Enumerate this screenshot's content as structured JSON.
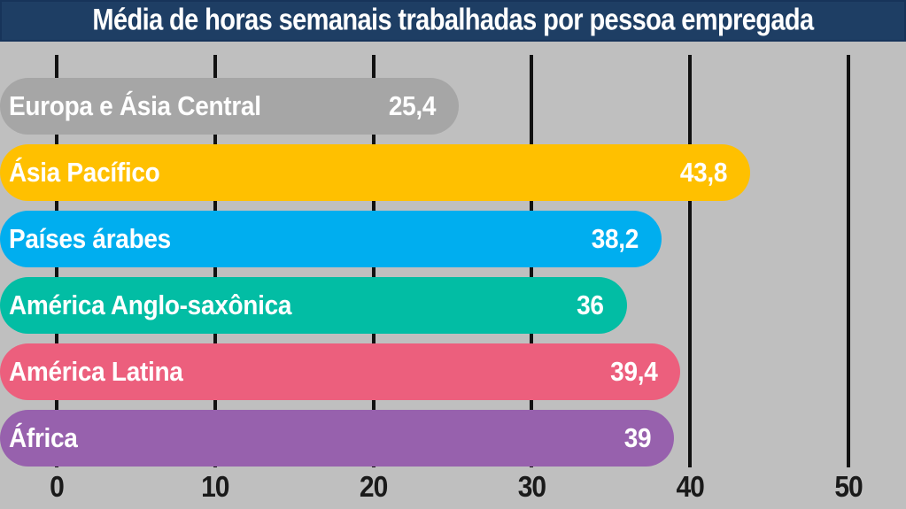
{
  "header": {
    "title": "Média de horas semanais trabalhadas por pessoa empregada",
    "background_color": "#1e3e64",
    "text_color": "#ffffff"
  },
  "chart_data": {
    "type": "bar",
    "orientation": "horizontal",
    "title": "Média de horas semanais trabalhadas por pessoa empregada",
    "categories": [
      "Europa e Ásia Central",
      "Ásia Pacífico",
      "Países árabes",
      "América Anglo-saxônica",
      "América Latina",
      "África"
    ],
    "values": [
      25.4,
      43.8,
      38.2,
      36,
      39.4,
      39
    ],
    "value_labels": [
      "25,4",
      "43,8",
      "38,2",
      "36",
      "39,4",
      "39"
    ],
    "bar_colors": [
      "#a6a6a6",
      "#ffc000",
      "#00aeef",
      "#02bda4",
      "#ec5f7d",
      "#9761ad"
    ],
    "bar_text_color": "#ffffff",
    "x_ticks": [
      0,
      10,
      20,
      30,
      40,
      50
    ],
    "x_tick_labels": [
      "0",
      "10",
      "20",
      "30",
      "40",
      "50"
    ],
    "xlim": [
      0,
      53
    ],
    "xlabel": "",
    "ylabel": "",
    "grid": "vertical",
    "gridline_color": "#111111",
    "background_color": "#bfbfbf",
    "legend_position": "none"
  }
}
